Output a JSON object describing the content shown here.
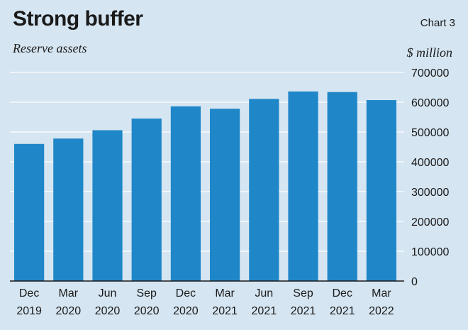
{
  "header": {
    "title": "Strong buffer",
    "chart_label": "Chart 3",
    "subtitle": "Reserve assets",
    "unit": "$ million"
  },
  "colors": {
    "background": "#d5e5f1",
    "bar": "#1f87c8",
    "grid": "#ffffff",
    "axis": "#1a1a1a"
  },
  "chart_data": {
    "type": "bar",
    "title": "Strong buffer",
    "subtitle": "Reserve assets",
    "ylabel": "$ million",
    "xlabel": "",
    "categories": [
      [
        "Dec",
        "2019"
      ],
      [
        "Mar",
        "2020"
      ],
      [
        "Jun",
        "2020"
      ],
      [
        "Sep",
        "2020"
      ],
      [
        "Dec",
        "2020"
      ],
      [
        "Mar",
        "2021"
      ],
      [
        "Jun",
        "2021"
      ],
      [
        "Sep",
        "2021"
      ],
      [
        "Dec",
        "2021"
      ],
      [
        "Mar",
        "2022"
      ]
    ],
    "values": [
      460000,
      478000,
      506000,
      545000,
      586000,
      578000,
      611000,
      636000,
      634000,
      607000
    ],
    "ylim": [
      0,
      700000
    ],
    "yticks": [
      "0",
      "100000",
      "200000",
      "300000",
      "400000",
      "500000",
      "600000",
      "700000"
    ],
    "yaxis_position": "right",
    "grid": true,
    "legend": "none"
  }
}
